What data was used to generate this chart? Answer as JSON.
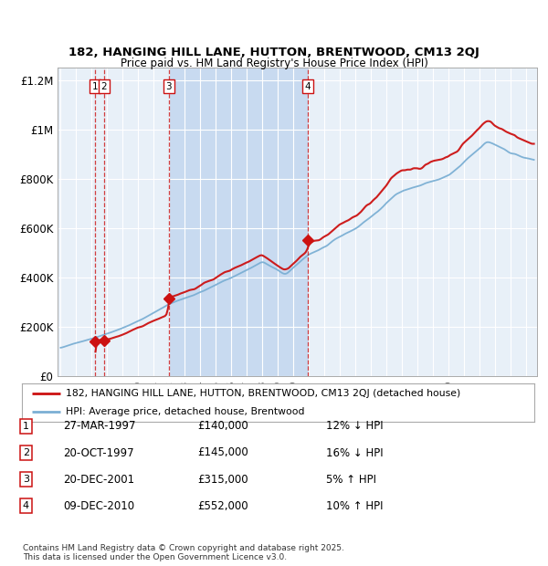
{
  "title_line1": "182, HANGING HILL LANE, HUTTON, BRENTWOOD, CM13 2QJ",
  "title_line2": "Price paid vs. HM Land Registry's House Price Index (HPI)",
  "hpi_color": "#7bafd4",
  "price_color": "#cc1111",
  "background_color": "#e8f0f8",
  "highlight_color": "#c8daf0",
  "legend_label_price": "182, HANGING HILL LANE, HUTTON, BRENTWOOD, CM13 2QJ (detached house)",
  "legend_label_hpi": "HPI: Average price, detached house, Brentwood",
  "footer": "Contains HM Land Registry data © Crown copyright and database right 2025.\nThis data is licensed under the Open Government Licence v3.0.",
  "transactions": [
    {
      "num": 1,
      "date": "27-MAR-1997",
      "price": 140000,
      "note": "12% ↓ HPI"
    },
    {
      "num": 2,
      "date": "20-OCT-1997",
      "price": 145000,
      "note": "16% ↓ HPI"
    },
    {
      "num": 3,
      "date": "20-DEC-2001",
      "price": 315000,
      "note": "5% ↑ HPI"
    },
    {
      "num": 4,
      "date": "09-DEC-2010",
      "price": 552000,
      "note": "10% ↑ HPI"
    }
  ],
  "transaction_years": [
    1997.23,
    1997.8,
    2001.97,
    2010.94
  ],
  "transaction_prices": [
    140000,
    145000,
    315000,
    552000
  ],
  "ylim": [
    0,
    1250000
  ],
  "xlim_start": 1994.8,
  "xlim_end": 2025.7,
  "yticks": [
    0,
    200000,
    400000,
    600000,
    800000,
    1000000,
    1200000
  ],
  "ytick_labels": [
    "£0",
    "£200K",
    "£400K",
    "£600K",
    "£800K",
    "£1M",
    "£1.2M"
  ]
}
